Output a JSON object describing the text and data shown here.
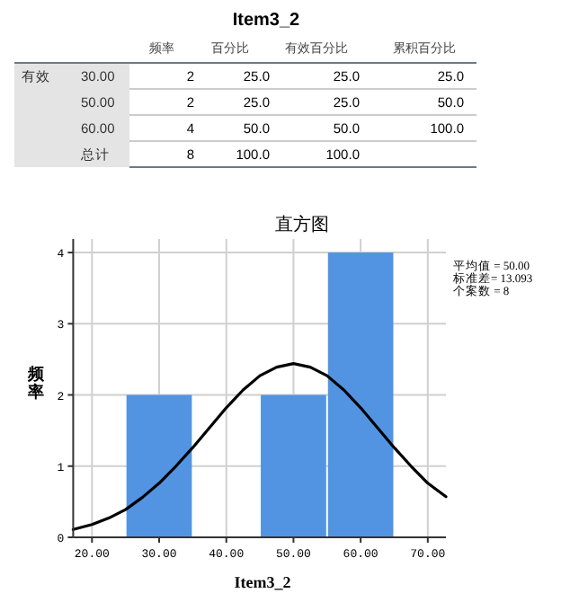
{
  "chart_data": [
    {
      "type": "other",
      "title": "Item3_2",
      "categories": [
        null,
        null,
        "频率",
        "百分比",
        "有效百分比",
        "累积百分比"
      ],
      "cell_labels": [
        [
          "有效",
          "30.00",
          "2",
          "25.0",
          "25.0",
          "25.0"
        ],
        [
          null,
          "50.00",
          "2",
          "25.0",
          "25.0",
          "50.0"
        ],
        [
          null,
          "60.00",
          "4",
          "50.0",
          "50.0",
          "100.0"
        ],
        [
          null,
          "总计",
          "8",
          "100.0",
          "100.0",
          null
        ]
      ]
    },
    {
      "type": "histogram",
      "title": "直方图",
      "xlabel": "Item3_2",
      "ylabel": "频率",
      "bins": [
        25,
        35,
        45,
        55,
        65
      ],
      "values": [
        2,
        0,
        2,
        4
      ],
      "color": "#5294e2",
      "xlim": [
        17.2,
        72.7
      ],
      "ylim": [
        0,
        4.19
      ],
      "xticks": [
        {
          "value": 20,
          "label": "20.00"
        },
        {
          "value": 30,
          "label": "30.00"
        },
        {
          "value": 40,
          "label": "40.00"
        },
        {
          "value": 50,
          "label": "50.00"
        },
        {
          "value": 60,
          "label": "60.00"
        },
        {
          "value": 70,
          "label": "70.00"
        }
      ],
      "yticks": [
        0,
        1,
        2,
        3,
        4
      ],
      "grid": true,
      "series": [
        {
          "type": "line",
          "color": "#000000",
          "x": [
            17.2,
            20,
            22.5,
            25,
            27.5,
            30,
            32.5,
            35,
            37.5,
            40,
            42.5,
            45,
            47.5,
            50,
            52.5,
            55,
            57.5,
            60,
            62.5,
            65,
            67.5,
            70,
            72.7
          ],
          "values": [
            0.11,
            0.18,
            0.27,
            0.39,
            0.56,
            0.76,
            1.0,
            1.26,
            1.54,
            1.82,
            2.07,
            2.27,
            2.39,
            2.44,
            2.39,
            2.27,
            2.07,
            1.82,
            1.54,
            1.26,
            1.0,
            0.76,
            0.57
          ]
        }
      ],
      "annotations": [
        "平均值 = 50.00",
        "标准差= 13.093",
        "个案数 = 8"
      ]
    }
  ]
}
